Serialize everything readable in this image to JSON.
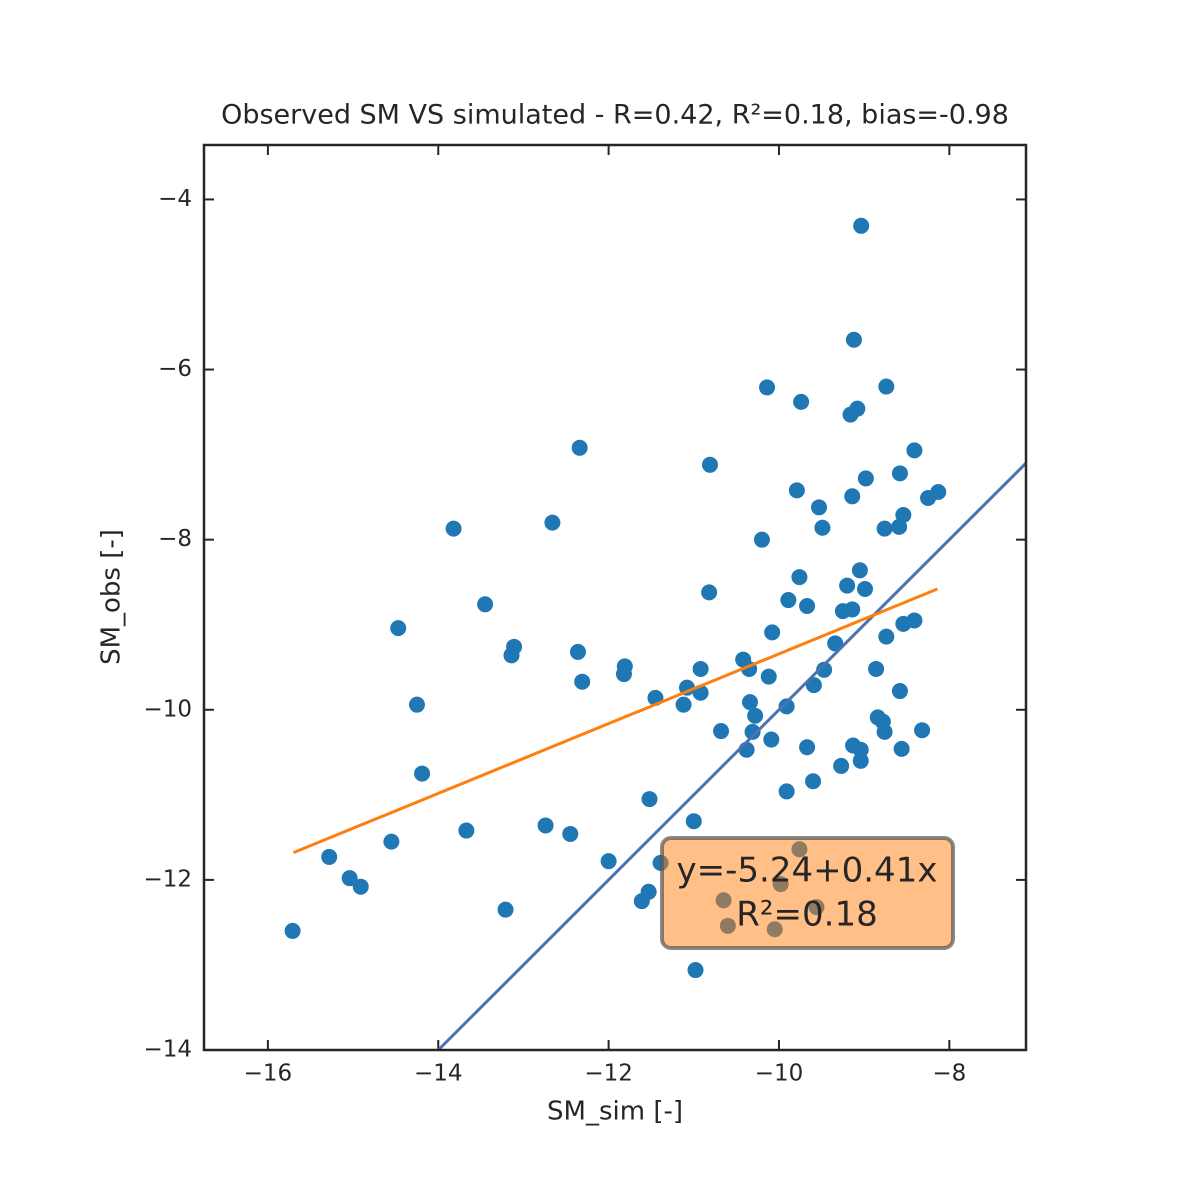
{
  "chart_data": {
    "type": "scatter",
    "title": "Observed SM VS simulated - R=0.42, R²=0.18, bias=-0.98",
    "x_label": "SM_sim [-]",
    "y_label": "SM_obs [-]",
    "color": "#1f77b4",
    "x": [
      -9.035,
      -9.12,
      -8.74,
      -10.14,
      -9.74,
      -9.08,
      -9.16,
      -12.34,
      -8.41,
      -10.81,
      -8.58,
      -8.98,
      -9.79,
      -8.13,
      -9.14,
      -8.25,
      -9.53,
      -8.54,
      -13.82,
      -8.76,
      -8.59,
      -9.49,
      -12.66,
      -10.2,
      -9.76,
      -9.05,
      -9.2,
      -10.82,
      -8.99,
      -9.89,
      -9.67,
      -13.45,
      -9.25,
      -9.14,
      -8.41,
      -8.54,
      -14.47,
      -8.74,
      -10.08,
      -9.34,
      -13.11,
      -13.14,
      -12.36,
      -10.42,
      -11.81,
      -10.92,
      -9.47,
      -10.35,
      -11.82,
      -10.12,
      -8.86,
      -12.31,
      -9.59,
      -11.08,
      -10.92,
      -8.58,
      -11.45,
      -10.34,
      -14.25,
      -11.12,
      -9.91,
      -10.28,
      -8.84,
      -8.78,
      -10.31,
      -10.68,
      -8.32,
      -8.76,
      -10.09,
      -9.13,
      -9.67,
      -9.04,
      -10.38,
      -8.56,
      -9.04,
      -9.27,
      -14.19,
      -9.6,
      -9.91,
      -11.52,
      -11.0,
      -12.74,
      -12.45,
      -13.67,
      -14.55,
      -9.76,
      -15.28,
      -12.0,
      -11.39,
      -15.04,
      -14.91,
      -9.98,
      -11.53,
      -11.61,
      -10.65,
      -9.56,
      -13.21,
      -10.6,
      -10.05,
      -15.71,
      -10.98
    ],
    "y": [
      -4.31,
      -5.65,
      -6.2,
      -6.21,
      -6.38,
      -6.46,
      -6.53,
      -6.92,
      -6.95,
      -7.12,
      -7.22,
      -7.28,
      -7.42,
      -7.44,
      -7.49,
      -7.51,
      -7.62,
      -7.71,
      -7.87,
      -7.87,
      -7.85,
      -7.86,
      -7.8,
      -8.0,
      -8.44,
      -8.36,
      -8.54,
      -8.62,
      -8.58,
      -8.71,
      -8.78,
      -8.76,
      -8.84,
      -8.82,
      -8.95,
      -8.99,
      -9.04,
      -9.14,
      -9.09,
      -9.22,
      -9.26,
      -9.36,
      -9.32,
      -9.41,
      -9.49,
      -9.52,
      -9.53,
      -9.52,
      -9.58,
      -9.61,
      -9.52,
      -9.67,
      -9.71,
      -9.74,
      -9.8,
      -9.78,
      -9.86,
      -9.91,
      -9.94,
      -9.94,
      -9.96,
      -10.07,
      -10.09,
      -10.14,
      -10.26,
      -10.25,
      -10.24,
      -10.26,
      -10.35,
      -10.42,
      -10.44,
      -10.47,
      -10.47,
      -10.46,
      -10.6,
      -10.66,
      -10.75,
      -10.84,
      -10.96,
      -11.05,
      -11.31,
      -11.36,
      -11.46,
      -11.42,
      -11.55,
      -11.64,
      -11.73,
      -11.78,
      -11.8,
      -11.98,
      -12.08,
      -12.05,
      -12.14,
      -12.25,
      -12.24,
      -12.32,
      -12.35,
      -12.54,
      -12.58,
      -12.6,
      -13.06
    ],
    "regression_line": {
      "x": [
        -15.7,
        -8.14
      ],
      "y": [
        -11.68,
        -8.58
      ],
      "color": "#ff7f0e"
    },
    "reference_line": {
      "x": [
        -14,
        -7.1
      ],
      "y": [
        -14,
        -7.1
      ],
      "color": "#4c72b0"
    },
    "annotation": {
      "lines": [
        "y=-5.24+0.41x",
        "R²=0.18"
      ],
      "color": "#ff7f0e"
    },
    "xlim": [
      -16.75,
      -7.1
    ],
    "ylim": [
      -14,
      -3.36
    ],
    "xticks": [
      {
        "value": -16,
        "label": "−16"
      },
      {
        "value": -14,
        "label": "−14"
      },
      {
        "value": -12,
        "label": "−12"
      },
      {
        "value": -10,
        "label": "−10"
      },
      {
        "value": -8,
        "label": "−8"
      }
    ],
    "yticks": [
      {
        "value": -14,
        "label": "−14"
      },
      {
        "value": -12,
        "label": "−12"
      },
      {
        "value": -10,
        "label": "−10"
      },
      {
        "value": -8,
        "label": "−8"
      },
      {
        "value": -6,
        "label": "−6"
      },
      {
        "value": -4,
        "label": "−4"
      }
    ],
    "grid": false
  }
}
